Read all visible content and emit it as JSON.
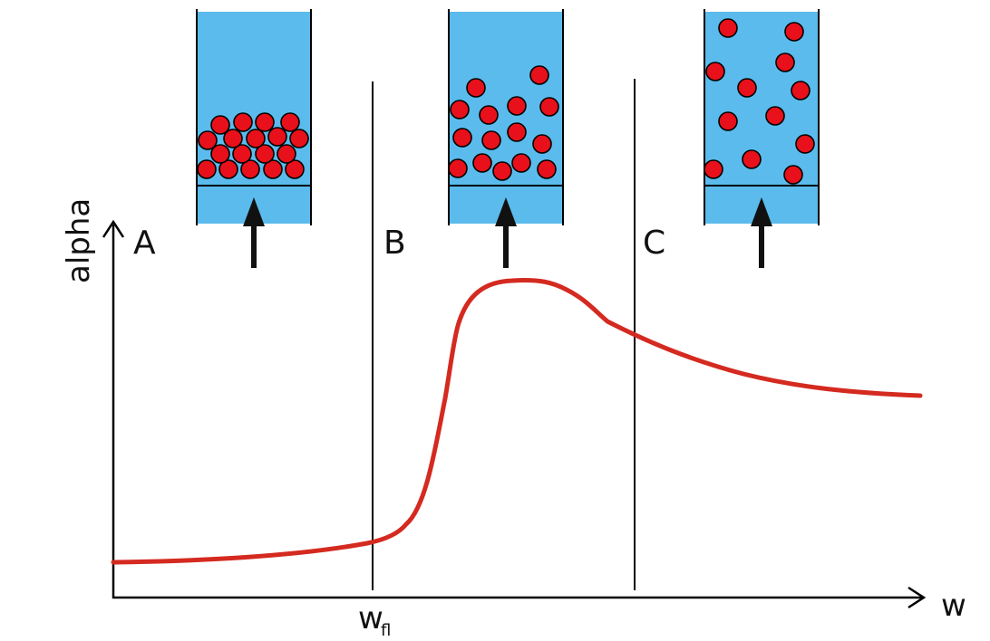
{
  "labels": {
    "y_axis": "alpha",
    "x_axis": "w",
    "x_tick_main": "w",
    "x_tick_sub": "fl"
  },
  "regions": [
    {
      "label": "A"
    },
    {
      "label": "B"
    },
    {
      "label": "C"
    }
  ],
  "colors": {
    "curve": "#d42a20",
    "fluid": "#5bbbec",
    "particle": "#e8101a"
  }
}
